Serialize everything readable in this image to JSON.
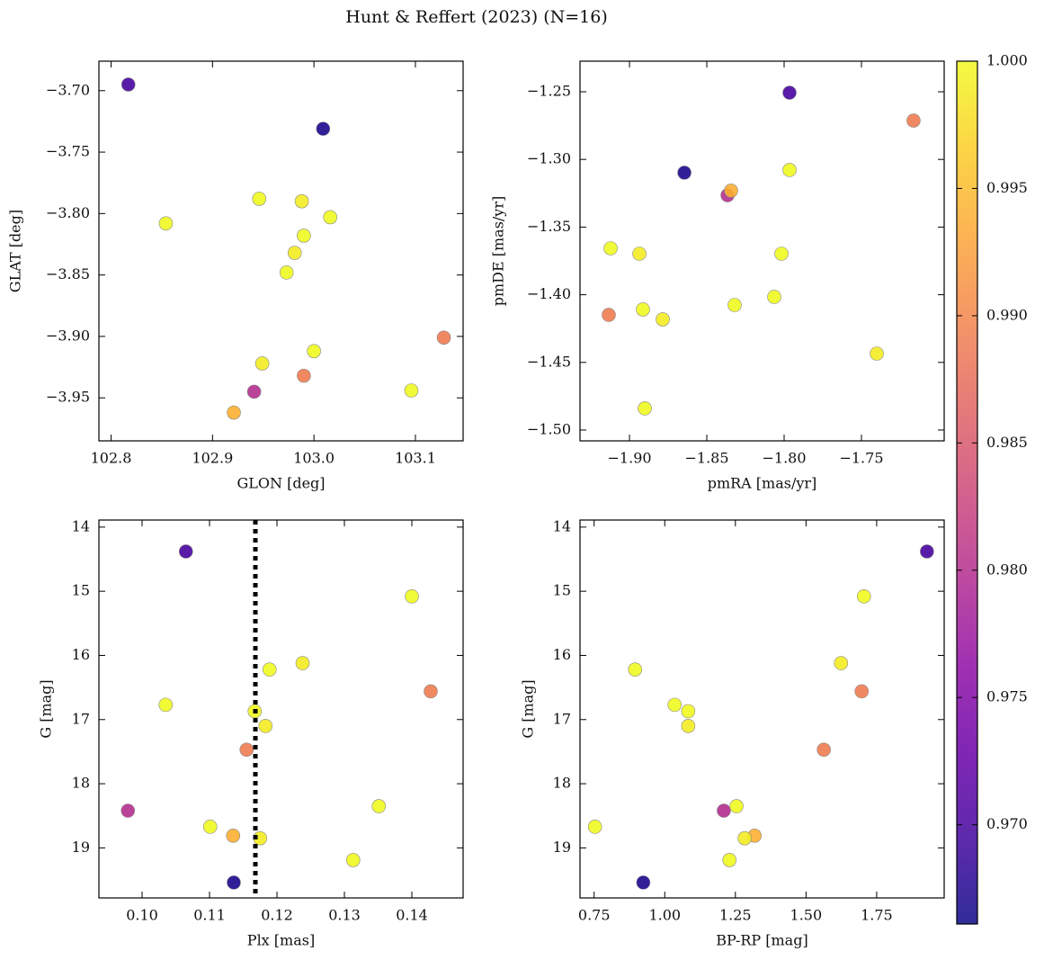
{
  "title": "Hunt & Reffert (2023) (N=16)",
  "colorbar": {
    "cmap": "plasma",
    "lim": [
      0.9661,
      1.0
    ],
    "ticks": [
      {
        "value": 0.97,
        "label": "0.970"
      },
      0.975,
      {
        "value": 0.98,
        "label": "0.980"
      },
      0.985,
      {
        "value": 0.99,
        "label": "0.990"
      },
      0.995,
      {
        "value": 1.0,
        "label": "1.000"
      }
    ]
  },
  "chart_data": [
    {
      "type": "scatter",
      "xlabel": "GLON [deg]",
      "ylabel": "GLAT [deg]",
      "x": [
        103.009,
        102.817,
        102.941,
        103.128,
        102.99,
        102.921,
        102.854,
        102.946,
        102.988,
        103.016,
        102.99,
        102.981,
        102.973,
        103.0,
        102.949,
        103.096
      ],
      "y": [
        -3.731,
        -3.695,
        -3.945,
        -3.901,
        -3.932,
        -3.962,
        -3.808,
        -3.788,
        -3.79,
        -3.803,
        -3.818,
        -3.832,
        -3.848,
        -3.912,
        -3.922,
        -3.944
      ],
      "c": [
        0.967,
        0.97,
        0.98,
        0.989,
        0.989,
        0.994,
        1.0,
        1.0,
        0.999,
        1.0,
        1.0,
        0.999,
        1.0,
        1.0,
        0.999,
        1.0
      ],
      "xlim": [
        102.788,
        103.147
      ],
      "ylim": [
        -3.985,
        -3.676
      ],
      "xticks": [
        102.8,
        102.9,
        {
          "value": 103.0,
          "label": "103.0"
        },
        103.1
      ],
      "yticks": [
        {
          "value": -3.95,
          "label": "−3.95"
        },
        {
          "value": -3.9,
          "label": "−3.90"
        },
        {
          "value": -3.85,
          "label": "−3.85"
        },
        {
          "value": -3.8,
          "label": "−3.80"
        },
        {
          "value": -3.75,
          "label": "−3.75"
        },
        {
          "value": -3.7,
          "label": "−3.70"
        }
      ]
    },
    {
      "type": "scatter",
      "xlabel": "pmRA [mas/yr]",
      "ylabel": "pmDE [mas/yr]",
      "x": [
        -1.8645,
        -1.7965,
        -1.8366,
        -1.7163,
        -1.9134,
        -1.8343,
        -1.7965,
        -1.9122,
        -1.8936,
        -1.8017,
        -1.8913,
        -1.8785,
        -1.832,
        -1.8064,
        -1.7401,
        -1.8901
      ],
      "y": [
        -1.3098,
        -1.2507,
        -1.3265,
        -1.2713,
        -1.4149,
        -1.3231,
        -1.3078,
        -1.3657,
        -1.3697,
        -1.3697,
        -1.4109,
        -1.4182,
        -1.4076,
        -1.4016,
        -1.4435,
        -1.484
      ],
      "c": [
        0.967,
        0.97,
        0.98,
        0.989,
        0.989,
        0.994,
        1.0,
        1.0,
        0.999,
        1.0,
        1.0,
        0.999,
        1.0,
        1.0,
        0.999,
        1.0
      ],
      "xlim": [
        -1.932,
        -1.6965
      ],
      "ylim": [
        -1.508,
        -1.2274
      ],
      "xticks": [
        {
          "value": -1.9,
          "label": "−1.90"
        },
        {
          "value": -1.85,
          "label": "−1.85"
        },
        {
          "value": -1.8,
          "label": "−1.80"
        },
        {
          "value": -1.75,
          "label": "−1.75"
        }
      ],
      "yticks": [
        {
          "value": -1.5,
          "label": "−1.50"
        },
        {
          "value": -1.45,
          "label": "−1.45"
        },
        {
          "value": -1.4,
          "label": "−1.40"
        },
        {
          "value": -1.35,
          "label": "−1.35"
        },
        {
          "value": -1.3,
          "label": "−1.30"
        },
        {
          "value": -1.25,
          "label": "−1.25"
        }
      ]
    },
    {
      "type": "scatter",
      "xlabel": "Plx [mas]",
      "ylabel": "G [mag]",
      "x": [
        0.1136,
        0.1065,
        0.0979,
        0.1428,
        0.1155,
        0.1135,
        0.14,
        0.1189,
        0.1238,
        0.1035,
        0.1167,
        0.1183,
        0.1351,
        0.1101,
        0.1175,
        0.1313
      ],
      "y": [
        19.54,
        14.38,
        18.42,
        16.56,
        17.47,
        18.81,
        15.08,
        16.22,
        16.12,
        16.77,
        16.87,
        17.1,
        18.35,
        18.67,
        18.85,
        19.19
      ],
      "c": [
        0.967,
        0.97,
        0.98,
        0.989,
        0.989,
        0.994,
        1.0,
        1.0,
        0.999,
        1.0,
        1.0,
        0.999,
        1.0,
        1.0,
        0.999,
        1.0
      ],
      "vline": 0.1168,
      "xlim": [
        0.0936,
        0.1476
      ],
      "ylim": [
        19.78,
        13.89
      ],
      "xticks": [
        {
          "value": 0.1,
          "label": "0.10"
        },
        0.11,
        0.12,
        0.13,
        0.14
      ],
      "yticks": [
        14,
        15,
        16,
        17,
        18,
        19
      ]
    },
    {
      "type": "scatter",
      "xlabel": "BP-RP [mag]",
      "ylabel": "G [mag]",
      "x": [
        0.924,
        1.928,
        1.209,
        1.697,
        1.563,
        1.318,
        1.705,
        0.895,
        1.624,
        1.035,
        1.083,
        1.083,
        1.254,
        0.753,
        1.283,
        1.229
      ],
      "y": [
        19.54,
        14.38,
        18.42,
        16.56,
        17.47,
        18.81,
        15.08,
        16.22,
        16.12,
        16.77,
        16.87,
        17.1,
        18.35,
        18.67,
        18.85,
        19.19
      ],
      "c": [
        0.967,
        0.97,
        0.98,
        0.989,
        0.989,
        0.994,
        1.0,
        1.0,
        0.999,
        1.0,
        1.0,
        0.999,
        1.0,
        1.0,
        0.999,
        1.0
      ],
      "xlim": [
        0.7,
        1.989
      ],
      "ylim": [
        19.78,
        13.89
      ],
      "xticks": [
        0.75,
        {
          "value": 1.0,
          "label": "1.00"
        },
        1.25,
        {
          "value": 1.5,
          "label": "1.50"
        },
        1.75
      ],
      "yticks": [
        14,
        15,
        16,
        17,
        18,
        19
      ]
    }
  ]
}
